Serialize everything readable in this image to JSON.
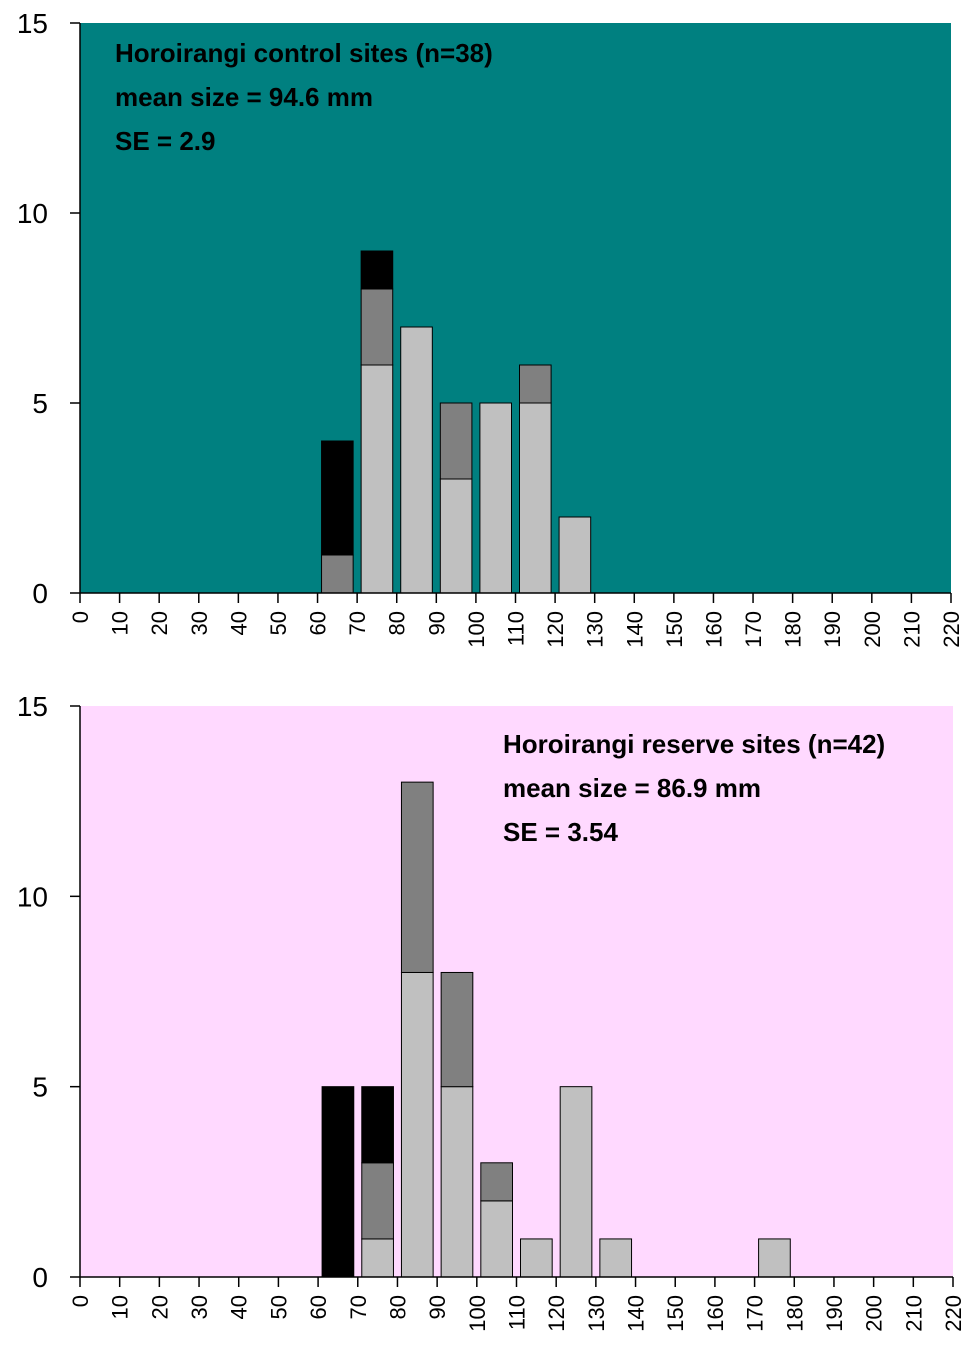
{
  "chart_data": [
    {
      "type": "bar",
      "stacked": true,
      "background_color": "#008080",
      "annotations": [
        "Horoirangi control sites (n=38)",
        "mean size = 94.6 mm",
        "SE = 2.9"
      ],
      "annotation_placement": "top-left",
      "ylim": [
        0,
        15
      ],
      "yticks": [
        0,
        5,
        10,
        15
      ],
      "xlim": [
        0,
        220
      ],
      "xticks": [
        0,
        10,
        20,
        30,
        40,
        50,
        60,
        70,
        80,
        90,
        100,
        110,
        120,
        130,
        140,
        150,
        160,
        170,
        180,
        190,
        200,
        210,
        220
      ],
      "bin_width": 10,
      "x": [
        60,
        70,
        80,
        90,
        100,
        110,
        120
      ],
      "series": [
        {
          "color": "#c0c0c0",
          "values": [
            0,
            6,
            7,
            3,
            5,
            5,
            2
          ]
        },
        {
          "color": "#808080",
          "values": [
            1,
            2,
            0,
            2,
            0,
            1,
            0
          ]
        },
        {
          "color": "#000000",
          "values": [
            3,
            1,
            0,
            0,
            0,
            0,
            0
          ]
        }
      ],
      "grid": false
    },
    {
      "type": "bar",
      "stacked": true,
      "background_color": "#ffd9ff",
      "annotations": [
        "Horoirangi reserve sites (n=42)",
        "mean size = 86.9 mm",
        "SE = 3.54"
      ],
      "annotation_placement": "top-right",
      "ylim": [
        0,
        15
      ],
      "yticks": [
        0,
        5,
        10,
        15
      ],
      "xlim": [
        0,
        220
      ],
      "xticks": [
        0,
        10,
        20,
        30,
        40,
        50,
        60,
        70,
        80,
        90,
        100,
        110,
        120,
        130,
        140,
        150,
        160,
        170,
        180,
        190,
        200,
        210,
        220
      ],
      "bin_width": 10,
      "x": [
        60,
        70,
        80,
        90,
        100,
        110,
        120,
        130,
        170
      ],
      "series": [
        {
          "color": "#c0c0c0",
          "values": [
            0,
            1,
            8,
            5,
            2,
            1,
            5,
            1,
            1
          ]
        },
        {
          "color": "#808080",
          "values": [
            0,
            2,
            5,
            3,
            1,
            0,
            0,
            0,
            0
          ]
        },
        {
          "color": "#000000",
          "values": [
            5,
            2,
            0,
            0,
            0,
            0,
            0,
            0,
            0
          ]
        }
      ],
      "grid": false
    }
  ]
}
